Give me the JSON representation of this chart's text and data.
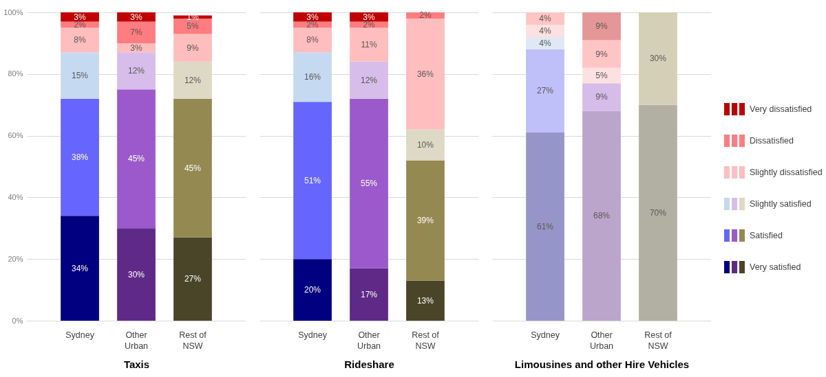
{
  "chart_data": [
    {
      "type": "bar",
      "stacked": true,
      "xlabel": "Taxis",
      "categories": [
        "Sydney",
        "Other Urban",
        "Rest of NSW"
      ],
      "ylim": [
        0,
        100
      ],
      "yticks": [
        {
          "value": 0,
          "label": "0%"
        },
        {
          "value": 20,
          "label": "20%"
        },
        {
          "value": 40,
          "label": "40%"
        },
        {
          "value": 60,
          "label": "60%"
        },
        {
          "value": 80,
          "label": "80%"
        },
        {
          "value": 100,
          "label": "100%"
        }
      ],
      "grid": "y",
      "legend": "right",
      "series": [
        {
          "name": "Very satisfied",
          "colors": [
            "#000080",
            "#5f2987",
            "#4a4428"
          ],
          "values": [
            34,
            30,
            27
          ],
          "value_labels": [
            "34%",
            "30%",
            "27%"
          ]
        },
        {
          "name": "Satisfied",
          "colors": [
            "#6666ff",
            "#9b59cc",
            "#938951"
          ],
          "values": [
            38,
            45,
            45
          ],
          "value_labels": [
            "38%",
            "45%",
            "45%"
          ]
        },
        {
          "name": "Slightly satisfied",
          "colors": [
            "#c5d9f1",
            "#d7bde9",
            "#ddd9c4"
          ],
          "values": [
            15,
            12,
            12
          ],
          "value_labels": [
            "15%",
            "12%",
            "12%"
          ]
        },
        {
          "name": "Slightly dissatisfied",
          "colors": [
            "#ffbdbd",
            "#ffbdbd",
            "#ffbdbd"
          ],
          "values": [
            8,
            3,
            9
          ],
          "value_labels": [
            "8%",
            "3%",
            "9%"
          ]
        },
        {
          "name": "Dissatisfied",
          "colors": [
            "#ff7c80",
            "#ff7c80",
            "#ff7c80"
          ],
          "values": [
            2,
            7,
            5
          ],
          "value_labels": [
            "2%",
            "7%",
            "5%"
          ]
        },
        {
          "name": "Very dissatisfied",
          "colors": [
            "#c00000",
            "#c00000",
            "#c00000"
          ],
          "values": [
            3,
            3,
            1
          ],
          "value_labels": [
            "3%",
            "3%",
            "1%"
          ]
        }
      ]
    },
    {
      "type": "bar",
      "stacked": true,
      "xlabel": "Rideshare",
      "categories": [
        "Sydney",
        "Other Urban",
        "Rest of NSW"
      ],
      "ylim": [
        0,
        100
      ],
      "yticks": [
        0,
        20,
        40,
        60,
        80,
        100
      ],
      "grid": "y",
      "tick_labels": "x",
      "series": [
        {
          "colors": [
            "#000080",
            "#5f2987",
            "#4a4428"
          ],
          "values": [
            20,
            17,
            13
          ],
          "value_labels": [
            "20%",
            "17%",
            "13%"
          ]
        },
        {
          "colors": [
            "#6666ff",
            "#9b59cc",
            "#938951"
          ],
          "values": [
            51,
            55,
            39
          ],
          "value_labels": [
            "51%",
            "55%",
            "39%"
          ]
        },
        {
          "colors": [
            "#c5d9f1",
            "#d7bde9",
            "#ddd9c4"
          ],
          "values": [
            16,
            12,
            10
          ],
          "value_labels": [
            "16%",
            "12%",
            "10%"
          ]
        },
        {
          "colors": [
            "#ffbdbd",
            "#ffbdbd",
            "#ffbdbd"
          ],
          "values": [
            8,
            11,
            36
          ],
          "value_labels": [
            "8%",
            "11%",
            "36%"
          ]
        },
        {
          "colors": [
            "#ff7c80",
            "#ff7c80",
            "#ff7c80"
          ],
          "values": [
            2,
            2,
            2
          ],
          "value_labels": [
            "2%",
            "2%",
            "2%"
          ]
        },
        {
          "colors": [
            "#c00000",
            "#c00000",
            "#c00000"
          ],
          "values": [
            3,
            3,
            0
          ],
          "value_labels": [
            "3%",
            "3%",
            null
          ]
        }
      ]
    },
    {
      "type": "bar",
      "stacked": true,
      "xlabel": "Limousines and other Hire Vehicles",
      "categories": [
        "Sydney",
        "Other Urban",
        "Rest of NSW"
      ],
      "ylim": [
        0,
        100
      ],
      "yticks": [
        0,
        20,
        40,
        60,
        80,
        100
      ],
      "grid": "y",
      "tick_labels": "x",
      "series": [
        {
          "colors": [
            "#9595c9",
            "#bba5cb",
            "#b1b0a3"
          ],
          "values": [
            61,
            68,
            70
          ],
          "value_labels": [
            "61%",
            "68%",
            "70%"
          ]
        },
        {
          "colors": [
            "#bfbff9",
            "#d6bce8",
            "#d4cfb7"
          ],
          "values": [
            27,
            9,
            30
          ],
          "value_labels": [
            "27%",
            "9%",
            "30%"
          ]
        },
        {
          "colors": [
            "#dfe9f5",
            "#e8ddf0",
            "#eeece1"
          ],
          "values": [
            4,
            0,
            0
          ],
          "value_labels": [
            "4%",
            null,
            null
          ]
        },
        {
          "colors": [
            "#fde0e0",
            "#fde0e0",
            "#fde0e0"
          ],
          "values": [
            4,
            5,
            0
          ],
          "value_labels": [
            "4%",
            "5%",
            null
          ]
        },
        {
          "colors": [
            "#ffc4c4",
            "#ffc4c4",
            "#ffc4c4"
          ],
          "values": [
            4,
            9,
            0
          ],
          "value_labels": [
            "4%",
            "9%",
            null
          ]
        },
        {
          "colors": [
            "#e59797",
            "#e59797",
            "#e59797"
          ],
          "values": [
            0,
            9,
            0
          ],
          "value_labels": [
            null,
            "9%",
            null
          ]
        }
      ]
    }
  ]
}
